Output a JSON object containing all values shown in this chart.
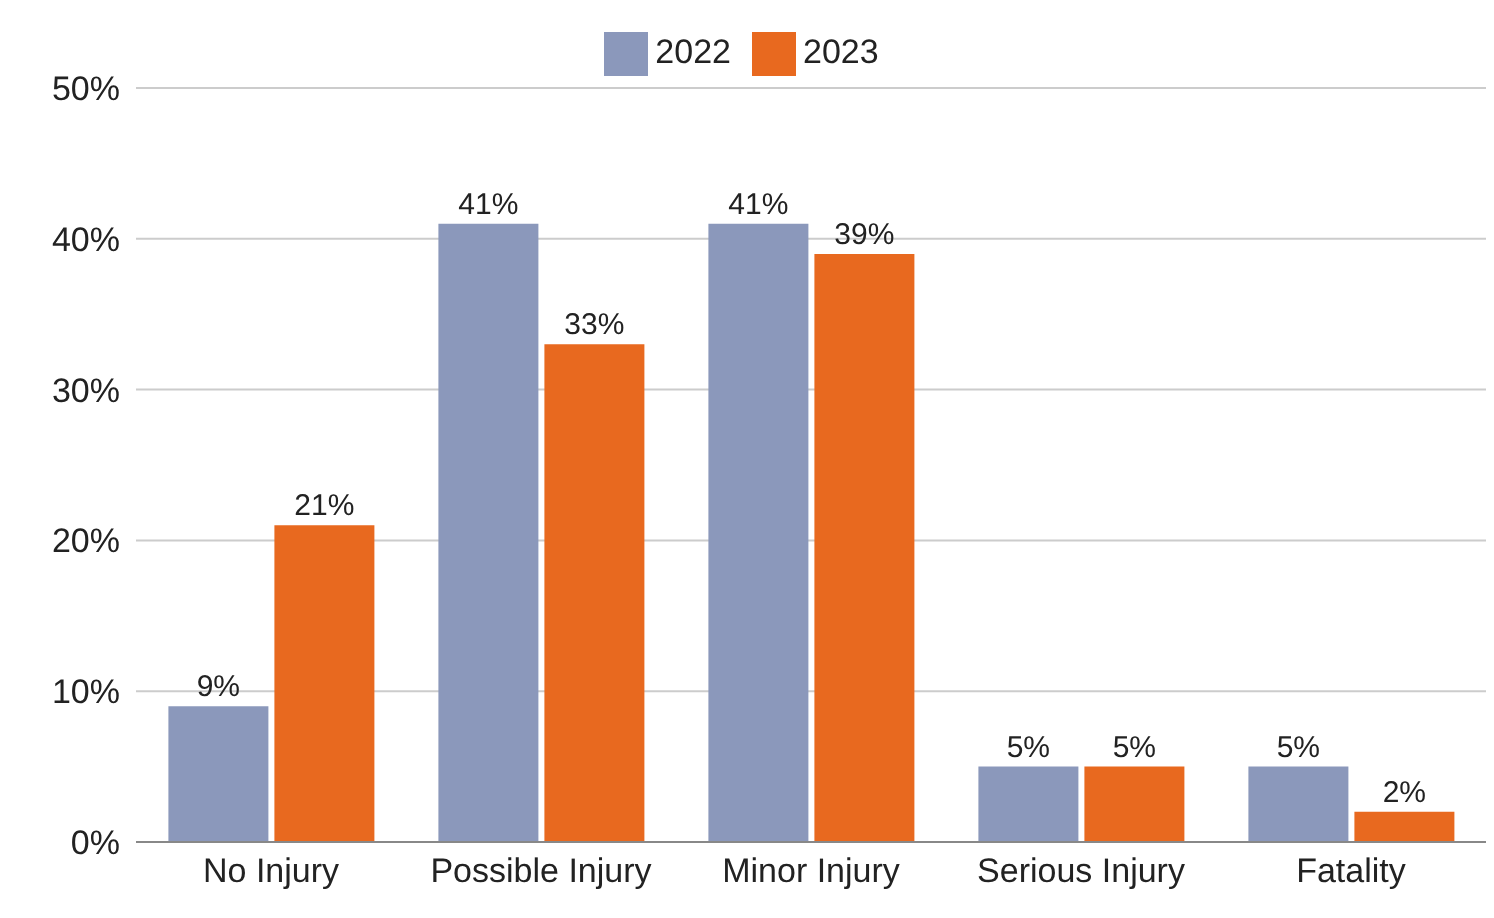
{
  "chart_data": {
    "type": "bar",
    "categories": [
      "No Injury",
      "Possible Injury",
      "Minor Injury",
      "Serious Injury",
      "Fatality"
    ],
    "series": [
      {
        "name": "2022",
        "color": "#8b98bb",
        "values": [
          9,
          41,
          41,
          5,
          5
        ],
        "value_labels": [
          "9%",
          "41%",
          "41%",
          "5%",
          "5%"
        ]
      },
      {
        "name": "2023",
        "color": "#e8691f",
        "values": [
          21,
          33,
          39,
          5,
          2
        ],
        "value_labels": [
          "21%",
          "33%",
          "39%",
          "5%",
          "2%"
        ]
      }
    ],
    "ylim": [
      0,
      50
    ],
    "yticks": [
      {
        "value": 0,
        "label": "0%"
      },
      {
        "value": 10,
        "label": "10%"
      },
      {
        "value": 20,
        "label": "20%"
      },
      {
        "value": 30,
        "label": "30%"
      },
      {
        "value": 40,
        "label": "40%"
      },
      {
        "value": 50,
        "label": "50%"
      }
    ],
    "grid": "y",
    "legend": "top"
  }
}
